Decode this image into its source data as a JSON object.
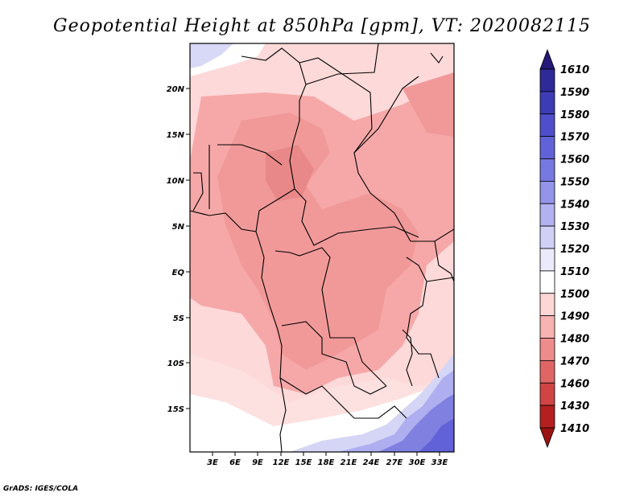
{
  "title": "Geopotential Height at 850hPa [gpm], VT: 2020082115",
  "credit": "GrADS: IGES/COLA",
  "map": {
    "lat_labels": [
      "20N",
      "15N",
      "10N",
      "5N",
      "EQ",
      "5S",
      "10S",
      "15S"
    ],
    "lon_labels": [
      "3E",
      "6E",
      "9E",
      "12E",
      "15E",
      "18E",
      "21E",
      "24E",
      "27E",
      "30E",
      "33E"
    ]
  },
  "colorbar": {
    "levels": [
      "1610",
      "1590",
      "1580",
      "1570",
      "1560",
      "1550",
      "1540",
      "1530",
      "1520",
      "1510",
      "1500",
      "1490",
      "1480",
      "1470",
      "1460",
      "1430",
      "1410"
    ],
    "colors": [
      "#241878",
      "#2f2a98",
      "#3e3cb4",
      "#4f4fcb",
      "#6262d8",
      "#7878e2",
      "#9494ea",
      "#b2b2f1",
      "#d0d0f7",
      "#eaeafb",
      "#ffffff",
      "#fdd6d6",
      "#f7b2b2",
      "#ee8c8c",
      "#e06666",
      "#d04444",
      "#b42020",
      "#9a1212"
    ]
  },
  "colors": {
    "land_base": "#fcdada",
    "mid_red": "#f5a5a5",
    "deep_red": "#ef8f8f",
    "blue": "#8080e0"
  }
}
